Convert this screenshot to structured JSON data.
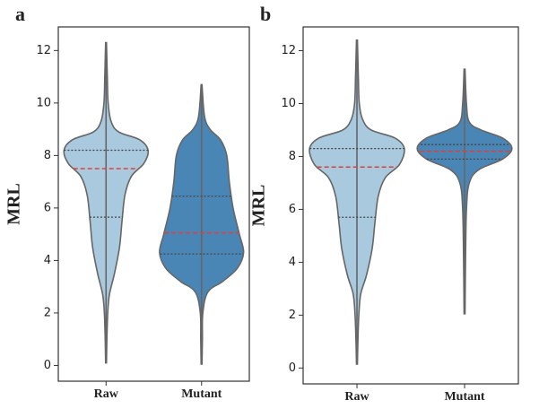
{
  "chart_data": [
    {
      "type": "violin",
      "panel_label": "a",
      "ylabel": "MRL",
      "categories": [
        "Raw",
        "Mutant"
      ],
      "colors": [
        "#a9c9de",
        "#4a86b5"
      ],
      "ylim": [
        -0.6,
        12.9
      ],
      "yticks": [
        0,
        2,
        4,
        6,
        8,
        10,
        12
      ],
      "stats": [
        {
          "min": 0.1,
          "q1": 5.65,
          "median": 7.5,
          "q3": 8.2,
          "max": 12.3
        },
        {
          "min": 0.05,
          "q1": 4.25,
          "median": 5.05,
          "q3": 6.45,
          "max": 10.7
        }
      ],
      "density": [
        {
          "y": [
            0.1,
            1,
            2,
            2.7,
            3.5,
            4.5,
            5.5,
            6.5,
            7.2,
            7.7,
            8.2,
            8.6,
            8.9,
            9.3,
            10,
            11,
            12.3
          ],
          "width": [
            0.01,
            0.02,
            0.04,
            0.08,
            0.2,
            0.32,
            0.38,
            0.45,
            0.6,
            0.9,
            1.0,
            0.8,
            0.3,
            0.12,
            0.05,
            0.03,
            0.01
          ]
        },
        {
          "y": [
            0.05,
            1,
            2,
            2.8,
            3.2,
            3.7,
            4.3,
            5,
            6,
            7,
            8,
            8.6,
            9,
            9.5,
            10.7
          ],
          "width": [
            0.01,
            0.02,
            0.03,
            0.15,
            0.5,
            0.85,
            1.0,
            0.9,
            0.75,
            0.66,
            0.6,
            0.45,
            0.2,
            0.07,
            0.01
          ]
        }
      ]
    },
    {
      "type": "violin",
      "panel_label": "b",
      "ylabel": "MRL",
      "categories": [
        "Raw",
        "Mutant"
      ],
      "colors": [
        "#a9c9de",
        "#4a86b5"
      ],
      "ylim": [
        -0.6,
        12.9
      ],
      "yticks": [
        0,
        2,
        4,
        6,
        8,
        10,
        12
      ],
      "stats": [
        {
          "min": 0.15,
          "q1": 5.7,
          "median": 7.6,
          "q3": 8.3,
          "max": 12.4
        },
        {
          "min": 2.05,
          "q1": 7.9,
          "median": 8.2,
          "q3": 8.45,
          "max": 11.3
        }
      ],
      "density": [
        {
          "y": [
            0.15,
            1,
            2,
            2.8,
            3.5,
            4.5,
            5.5,
            6.5,
            7.2,
            7.7,
            8.3,
            8.7,
            9,
            9.4,
            10,
            11,
            12.4
          ],
          "width": [
            0.01,
            0.02,
            0.04,
            0.08,
            0.2,
            0.32,
            0.38,
            0.45,
            0.6,
            0.9,
            1.0,
            0.8,
            0.3,
            0.12,
            0.05,
            0.03,
            0.01
          ]
        },
        {
          "y": [
            2.05,
            4,
            6,
            7,
            7.5,
            7.9,
            8.3,
            8.7,
            9,
            9.3,
            10,
            11.3
          ],
          "width": [
            0.01,
            0.02,
            0.04,
            0.1,
            0.3,
            0.8,
            1.0,
            0.8,
            0.35,
            0.1,
            0.04,
            0.01
          ]
        }
      ]
    }
  ]
}
